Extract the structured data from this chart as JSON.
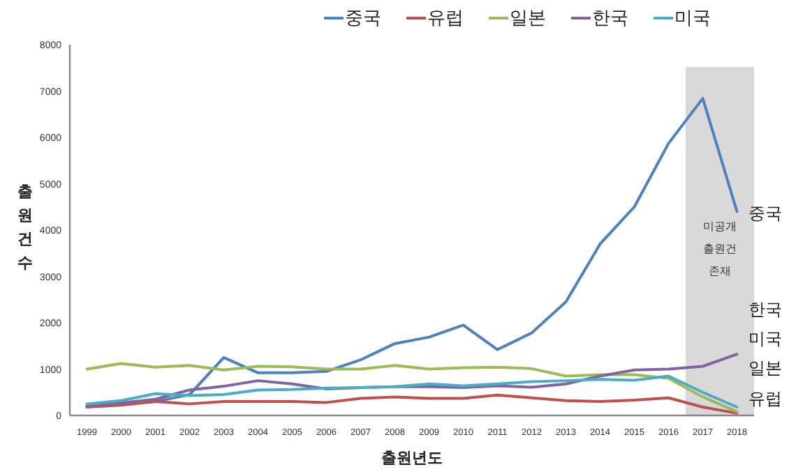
{
  "chart_data": {
    "type": "line",
    "xlabel": "출원년도",
    "ylabel": "출원건수",
    "categories": [
      "1999",
      "2000",
      "2001",
      "2002",
      "2003",
      "2004",
      "2005",
      "2006",
      "2007",
      "2008",
      "2009",
      "2010",
      "2011",
      "2012",
      "2013",
      "2014",
      "2015",
      "2016",
      "2017",
      "2018"
    ],
    "series": [
      {
        "name": "중국",
        "color": "#4f81bd",
        "values": [
          200,
          250,
          300,
          450,
          1250,
          920,
          920,
          950,
          1200,
          1550,
          1690,
          1950,
          1420,
          1780,
          2450,
          3700,
          4500,
          5870,
          6840,
          4400
        ]
      },
      {
        "name": "유럽",
        "color": "#c0504d",
        "values": [
          180,
          220,
          300,
          250,
          300,
          300,
          300,
          280,
          370,
          400,
          370,
          370,
          440,
          380,
          320,
          300,
          330,
          380,
          180,
          50
        ]
      },
      {
        "name": "일본",
        "color": "#9bbb59",
        "values": [
          1000,
          1120,
          1040,
          1080,
          980,
          1060,
          1050,
          1000,
          1000,
          1080,
          1000,
          1030,
          1040,
          1010,
          850,
          880,
          880,
          800,
          400,
          80
        ]
      },
      {
        "name": "한국",
        "color": "#8064a2",
        "values": [
          200,
          270,
          350,
          550,
          630,
          750,
          680,
          570,
          600,
          620,
          620,
          600,
          640,
          610,
          680,
          850,
          980,
          1000,
          1060,
          1320
        ]
      },
      {
        "name": "미국",
        "color": "#4bacc6",
        "values": [
          250,
          320,
          470,
          430,
          450,
          550,
          560,
          590,
          600,
          620,
          680,
          640,
          680,
          730,
          750,
          780,
          760,
          850,
          500,
          180
        ]
      }
    ],
    "ylim": [
      0,
      8000
    ],
    "yticks": [
      0,
      1000,
      2000,
      3000,
      4000,
      5000,
      6000,
      7000,
      8000
    ],
    "bands": [
      {
        "axis": "x",
        "from": "2017",
        "to": "2018",
        "label": "미공개 출원건 존재",
        "color": "#d9d9d9"
      }
    ],
    "annotations": [
      "중국",
      "한국",
      "미국",
      "일본",
      "유럽"
    ],
    "legend": "top",
    "grid": false,
    "marker": "none",
    "line_style": "solid"
  }
}
